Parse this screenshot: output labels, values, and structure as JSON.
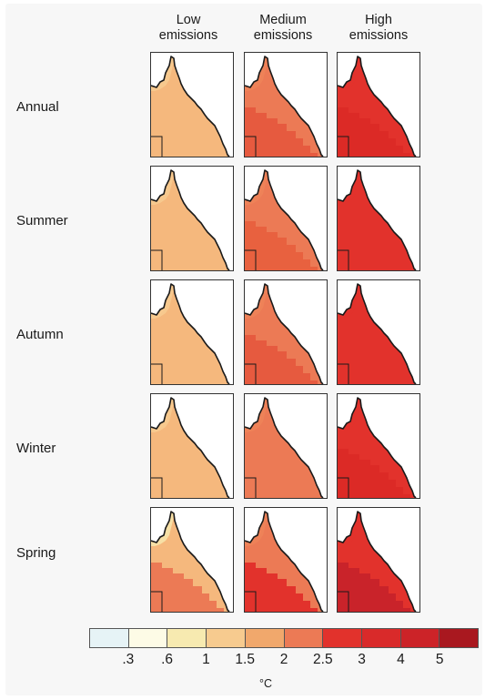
{
  "columns": [
    {
      "line1": "Low",
      "line2": "emissions"
    },
    {
      "line1": "Medium",
      "line2": "emissions"
    },
    {
      "line1": "High",
      "line2": "emissions"
    }
  ],
  "rows": [
    {
      "label": "Annual",
      "panels": [
        {
          "base": "#f5b87d",
          "south": "#f5b87d",
          "north": "#f7c98e"
        },
        {
          "base": "#ec7a55",
          "south": "#e65a3f",
          "north": "#ee8258"
        },
        {
          "base": "#e2322c",
          "south": "#dc2a26",
          "north": "#e2322c"
        }
      ]
    },
    {
      "label": "Summer",
      "panels": [
        {
          "base": "#f5b87d",
          "south": "#f5b87d",
          "north": "#f7c98e"
        },
        {
          "base": "#ec7a55",
          "south": "#e8613f",
          "north": "#ee8258"
        },
        {
          "base": "#e2322c",
          "south": "#e2322c",
          "north": "#e2322c"
        }
      ]
    },
    {
      "label": "Autumn",
      "panels": [
        {
          "base": "#f5b87d",
          "south": "#f5b87d",
          "north": "#f7c98e"
        },
        {
          "base": "#ec7a55",
          "south": "#e65a3f",
          "north": "#ee8258"
        },
        {
          "base": "#e2322c",
          "south": "#e2322c",
          "north": "#e2322c"
        }
      ]
    },
    {
      "label": "Winter",
      "panels": [
        {
          "base": "#f5b87d",
          "south": "#f5b87d",
          "north": "#f7c98e"
        },
        {
          "base": "#ec7a55",
          "south": "#ec7a55",
          "north": "#ee8258"
        },
        {
          "base": "#e2322c",
          "south": "#dc2a26",
          "north": "#e2322c"
        }
      ]
    },
    {
      "label": "Spring",
      "panels": [
        {
          "base": "#f5b87d",
          "south": "#ec7a55",
          "north": "#f7e0a6"
        },
        {
          "base": "#ec7a55",
          "south": "#e2322c",
          "north": "#ee8258"
        },
        {
          "base": "#e2322c",
          "south": "#c9232a",
          "north": "#e2322c"
        }
      ]
    }
  ],
  "legend": {
    "colors": [
      "#e6f3f6",
      "#fdfbe6",
      "#f7eab0",
      "#f7cb8f",
      "#f1a86c",
      "#ec7a55",
      "#e2322c",
      "#d92a2a",
      "#cc2328",
      "#a9181f"
    ],
    "ticks": [
      ".3",
      ".6",
      "1",
      "1.5",
      "2",
      "2.5",
      "3",
      "4",
      "5"
    ],
    "unit": "°C"
  },
  "colors": {
    "panel_border": "#333333",
    "coastline": "#1a1a1a",
    "background": "#f7f7f7"
  }
}
